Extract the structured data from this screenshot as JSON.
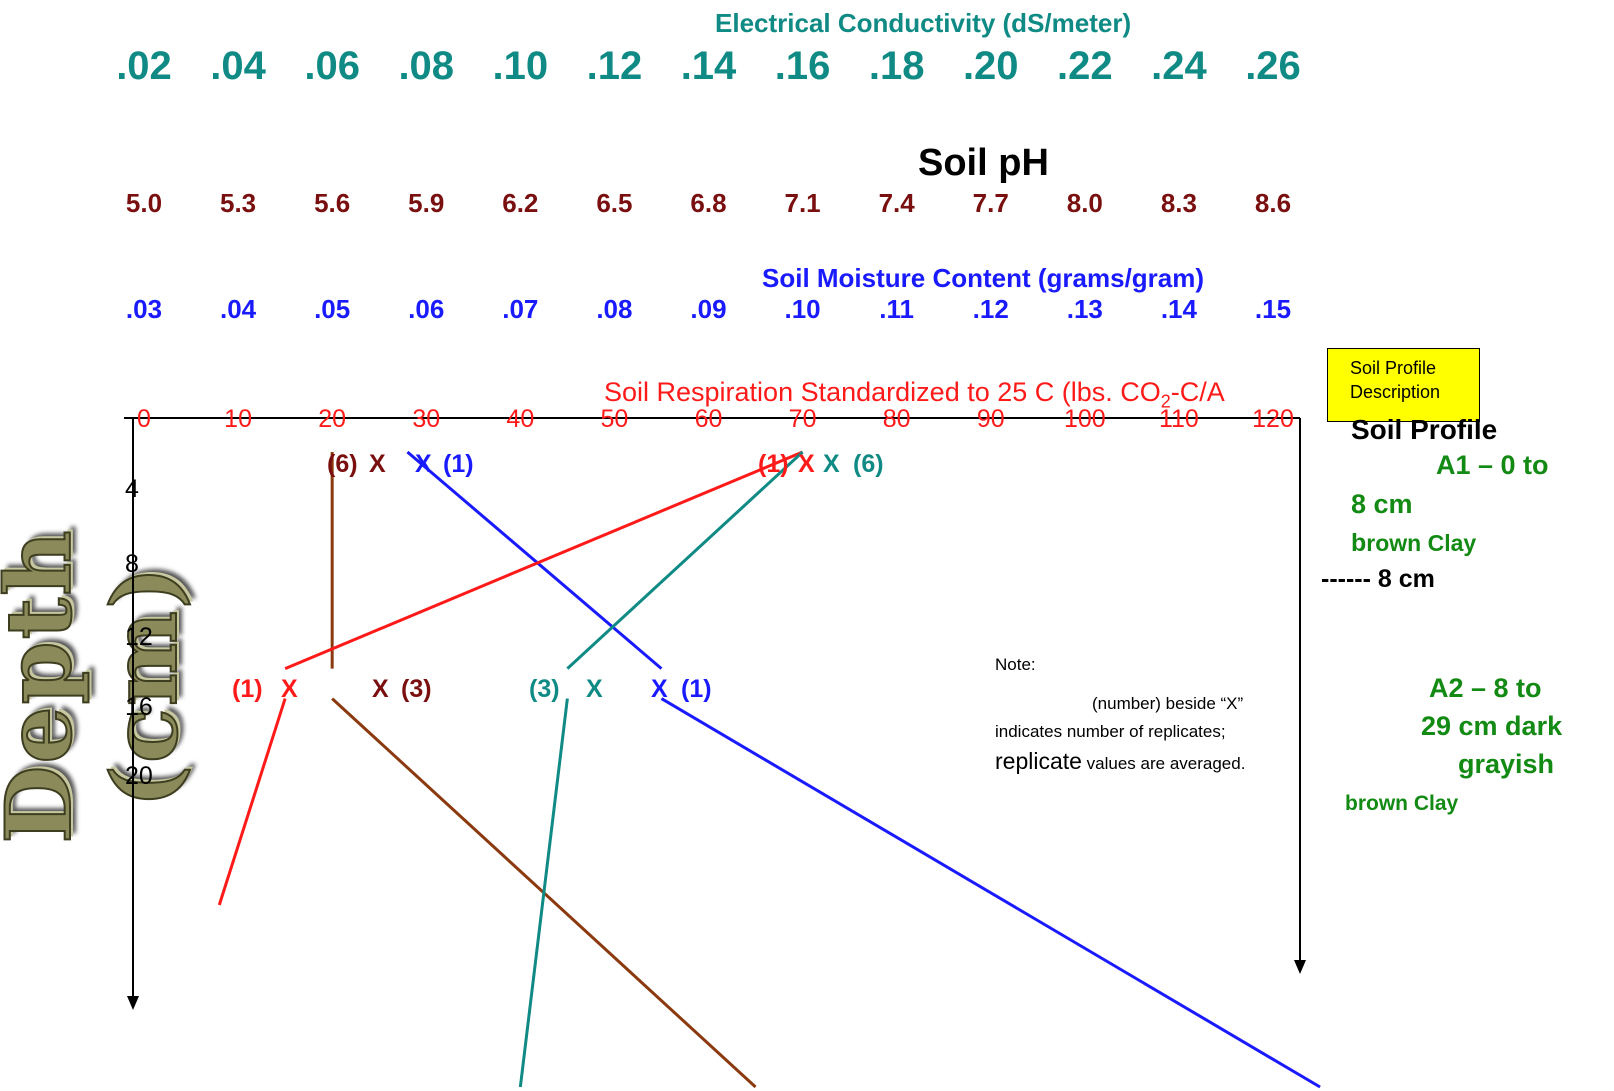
{
  "chart_data": {
    "type": "line",
    "axes": {
      "ec": {
        "title": "Electrical Conductivity (dS/meter)",
        "ticks": [
          ".02",
          ".04",
          ".06",
          ".08",
          ".10",
          ".12",
          ".14",
          ".16",
          ".18",
          ".20",
          ".22",
          ".24",
          ".26"
        ],
        "range": [
          0.02,
          0.26
        ],
        "color": "#0f8a84"
      },
      "ph": {
        "title": "Soil pH",
        "ticks": [
          "5.0",
          "5.3",
          "5.6",
          "5.9",
          "6.2",
          "6.5",
          "6.8",
          "7.1",
          "7.4",
          "7.7",
          "8.0",
          "8.3",
          "8.6"
        ],
        "range": [
          5.0,
          8.6
        ],
        "color": "#7a0f0f"
      },
      "moisture": {
        "title": "Soil Moisture Content (grams/gram)",
        "ticks": [
          ".03",
          ".04",
          ".05",
          ".06",
          ".07",
          ".08",
          ".09",
          ".10",
          ".11",
          ".12",
          ".13",
          ".14",
          ".15"
        ],
        "range": [
          0.03,
          0.15
        ],
        "color": "#1a1aff"
      },
      "respiration": {
        "title_html_parts": [
          "Soil Respiration Standardized to 25 C (lbs. CO",
          "2",
          "-C/A"
        ],
        "ticks": [
          "0",
          "10",
          "20",
          "30",
          "40",
          "50",
          "60",
          "70",
          "80",
          "90",
          "100",
          "110",
          "120"
        ],
        "range": [
          0,
          120
        ],
        "color": "#ff1a1a"
      },
      "depth": {
        "title": "Depth (cm)",
        "ticks": [
          "4",
          "8",
          "12",
          "16",
          "20"
        ],
        "range": [
          0,
          20
        ]
      }
    },
    "series": [
      {
        "axis": "ph",
        "color": "#8b3a0f",
        "points": [
          {
            "x": 5.6,
            "depth": 0,
            "replicates": "(6)",
            "label": "(6) X"
          },
          {
            "x": 5.6,
            "depth": 13,
            "replicates": "(3)",
            "label": "X (3)"
          }
        ],
        "extension": {
          "x": 6.95,
          "depth": 35
        }
      },
      {
        "axis": "moisture",
        "color": "#1a1aff",
        "points": [
          {
            "x": 0.058,
            "depth": 0,
            "replicates": "(1)",
            "label": "X (1)"
          },
          {
            "x": 0.085,
            "depth": 13,
            "replicates": "(1)",
            "label": "X (1)"
          }
        ],
        "extension": {
          "x": 0.155,
          "depth": 35
        }
      },
      {
        "axis": "respiration",
        "color": "#ff1a1a",
        "points": [
          {
            "x": 70,
            "depth": 0,
            "replicates": "(1)",
            "label": "(1) X"
          },
          {
            "x": 15,
            "depth": 13,
            "replicates": "(1)",
            "label": "(1) X"
          }
        ],
        "extension": {
          "x": 8,
          "depth": 25
        }
      },
      {
        "axis": "ec",
        "color": "#0f8a84",
        "points": [
          {
            "x": 0.16,
            "depth": 0,
            "replicates": "(6)",
            "label": "X (6)"
          },
          {
            "x": 0.11,
            "depth": 13,
            "replicates": "(3)",
            "label": "(3) X"
          }
        ],
        "extension": {
          "x": 0.1,
          "depth": 35
        }
      }
    ]
  },
  "legend": {
    "line1": "Soil  Profile",
    "line2": "Description"
  },
  "profile": {
    "title": "Soil Profile",
    "a1_line1": "A1 – 0 to",
    "a1_line2": "8 cm",
    "a1_line3_first": "b",
    "a1_line3_rest": "rown Clay",
    "boundary": "------ 8 cm",
    "a2_line1": "A2 – 8 to",
    "a2_line2": "29 cm dark",
    "a2_line3": "grayish",
    "a2_line4": "brown Clay"
  },
  "note": {
    "line1": "Note:",
    "line2": "(number) beside “X”",
    "line3": "indicates number of replicates;",
    "line4_big": "replicate",
    "line4_rest": " values are averaged."
  },
  "point_labels": {
    "ph_top": "(6)",
    "ph_top_x": "X",
    "mc_top_x": "X",
    "mc_top": "(1)",
    "resp_top": "(1)",
    "resp_top_x": "X",
    "ec_top_x": "X",
    "ec_top": "(6)",
    "resp_mid": "(1)",
    "resp_mid_x": "X",
    "ph_mid_x": "X",
    "ph_mid": "(3)",
    "ec_mid": "(3)",
    "ec_mid_x": "X",
    "mc_mid_x": "X",
    "mc_mid": "(1)"
  }
}
